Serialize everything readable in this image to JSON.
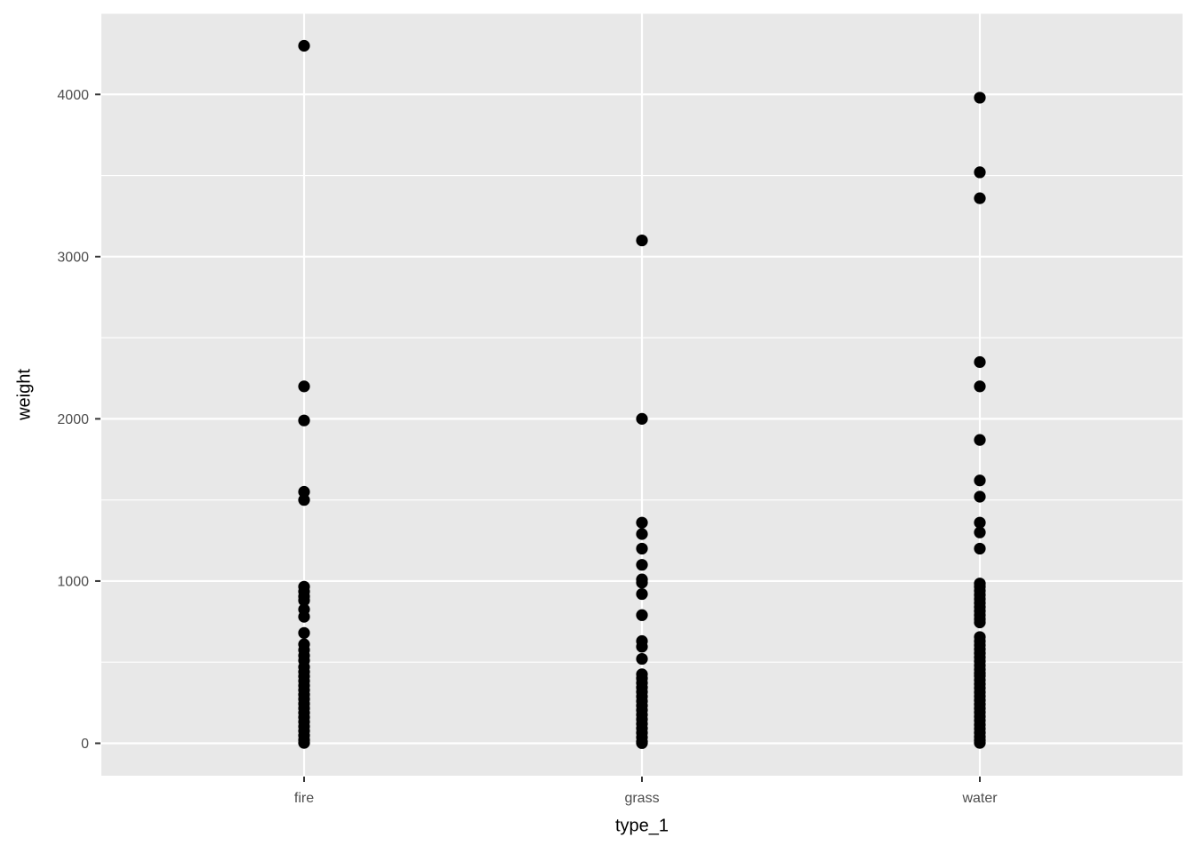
{
  "chart_data": {
    "type": "scatter",
    "variant": "strip-plot",
    "title": "",
    "xlabel": "type_1",
    "ylabel": "weight",
    "categories": [
      "fire",
      "grass",
      "water"
    ],
    "series": [
      {
        "name": "fire",
        "values": [
          4300,
          2200,
          1990,
          1550,
          1500,
          965,
          935,
          905,
          880,
          825,
          780,
          680,
          610,
          575,
          540,
          510,
          470,
          440,
          412,
          384,
          356,
          328,
          300,
          272,
          244,
          216,
          188,
          160,
          132,
          104,
          76,
          48,
          20,
          2
        ]
      },
      {
        "name": "grass",
        "values": [
          3100,
          2000,
          1360,
          1290,
          1200,
          1100,
          1010,
          990,
          920,
          790,
          630,
          595,
          520,
          425,
          400,
          372,
          344,
          316,
          288,
          260,
          232,
          204,
          176,
          148,
          120,
          92,
          64,
          36,
          10,
          1
        ]
      },
      {
        "name": "water",
        "values": [
          3980,
          3520,
          3360,
          2350,
          2200,
          1870,
          1620,
          1520,
          1360,
          1300,
          1200,
          985,
          965,
          940,
          915,
          890,
          865,
          840,
          815,
          790,
          765,
          745,
          655,
          630,
          605,
          580,
          555,
          530,
          505,
          480,
          455,
          432,
          415,
          390,
          365,
          340,
          315,
          290,
          265,
          240,
          215,
          190,
          165,
          140,
          115,
          90,
          65,
          40,
          18,
          2
        ]
      }
    ],
    "ylim": [
      -200,
      4500
    ],
    "y_ticks_major": [
      0,
      1000,
      2000,
      3000,
      4000
    ],
    "y_ticks_minor": [
      500,
      1500,
      2500,
      3500,
      4500
    ],
    "y_tick_labels": [
      "0",
      "1000",
      "2000",
      "3000",
      "4000"
    ],
    "grid": "major-and-minor",
    "legend_position": "none",
    "colors": {
      "panel_bg": "#E8E8E8",
      "outer_bg": "#FFFFFF",
      "grid_major": "#FFFFFF",
      "grid_minor": "#FFFFFF",
      "point": "#000000",
      "axis_text": "#4D4D4D",
      "axis_title": "#000000",
      "tick_mark": "#333333"
    }
  }
}
